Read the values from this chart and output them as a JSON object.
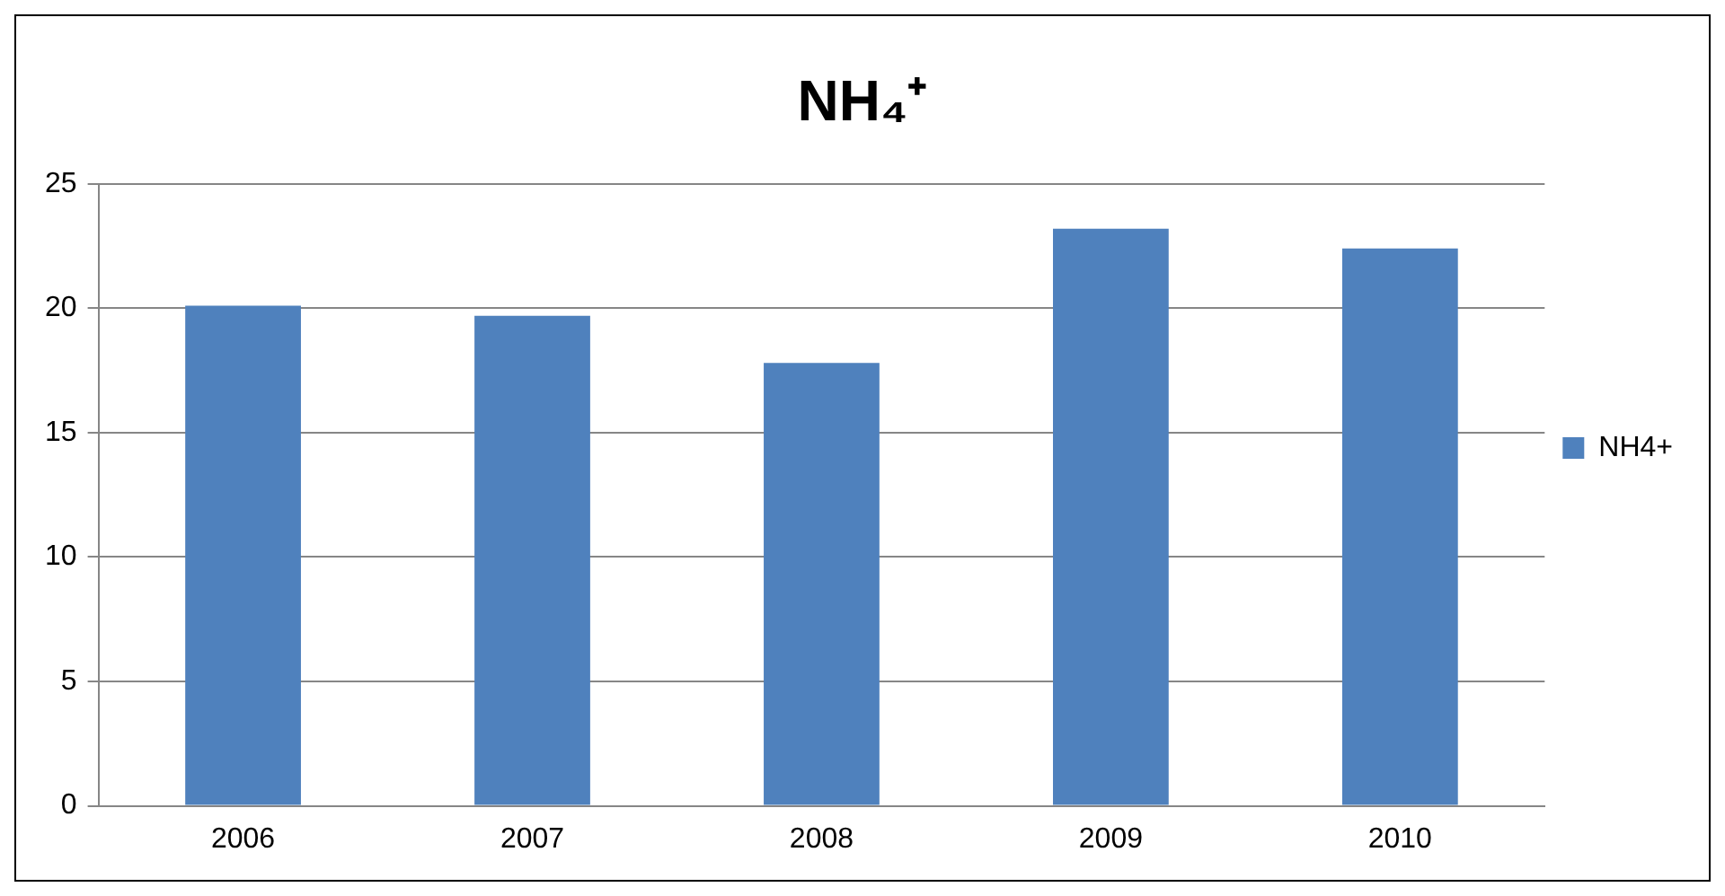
{
  "chart_data": {
    "type": "bar",
    "title": "NH₄⁺",
    "categories": [
      "2006",
      "2007",
      "2008",
      "2009",
      "2010"
    ],
    "series": [
      {
        "name": "NH4+",
        "color": "#4f81bd",
        "values": [
          20.1,
          19.7,
          17.8,
          23.2,
          22.4
        ]
      }
    ],
    "ylim": [
      0,
      25
    ],
    "yticks": [
      0,
      5,
      10,
      15,
      20,
      25
    ],
    "grid": "y",
    "legend": "right"
  }
}
